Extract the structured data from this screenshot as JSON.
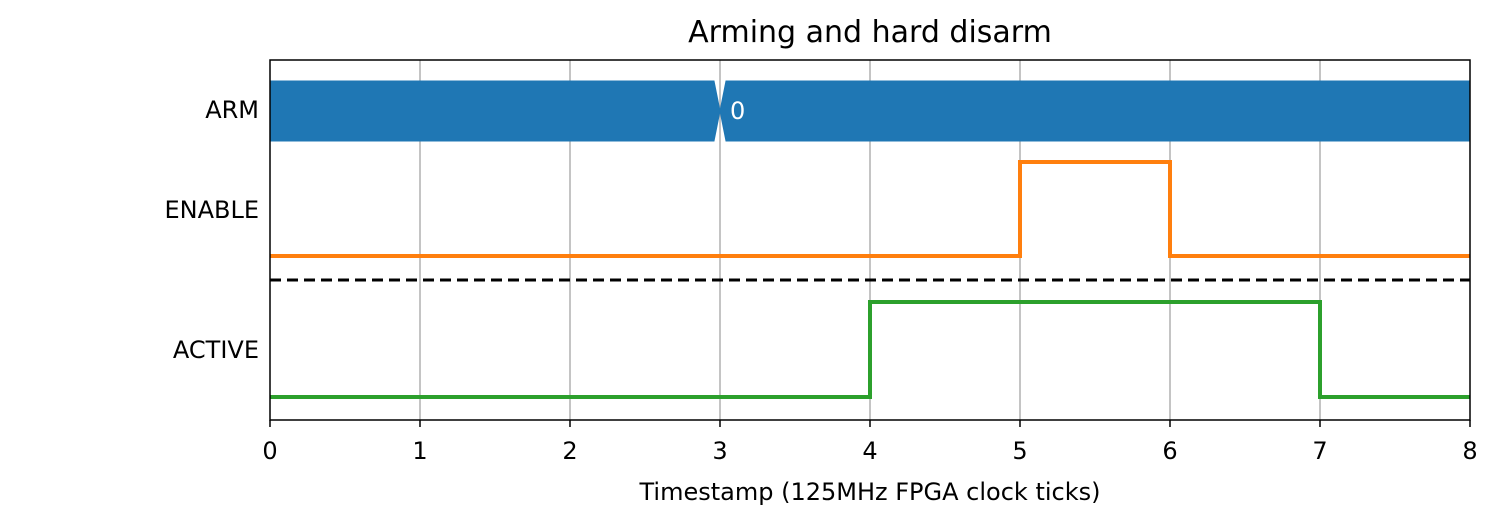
{
  "chart_data": {
    "type": "line",
    "title": "Arming and hard disarm",
    "xlabel": "Timestamp (125MHz FPGA clock ticks)",
    "ylabel": "",
    "xlim": [
      0,
      8
    ],
    "x_ticks": [
      "0",
      "1",
      "2",
      "3",
      "4",
      "5",
      "6",
      "7",
      "8"
    ],
    "grid": "vertical",
    "signals": [
      {
        "name": "ARM",
        "kind": "bus",
        "color": "#1f77b4",
        "segments": [
          {
            "start": 0,
            "end": 3,
            "label": ""
          },
          {
            "start": 3,
            "end": 8,
            "label": "0"
          }
        ]
      },
      {
        "name": "ENABLE",
        "kind": "digital",
        "color": "#ff7f0e",
        "steps": [
          {
            "x": 0,
            "y": 0
          },
          {
            "x": 5,
            "y": 1
          },
          {
            "x": 6,
            "y": 0
          },
          {
            "x": 8,
            "y": 0
          }
        ]
      },
      {
        "name": "ACTIVE",
        "kind": "digital",
        "color": "#2ca02c",
        "steps": [
          {
            "x": 0,
            "y": 0
          },
          {
            "x": 4,
            "y": 1
          },
          {
            "x": 7,
            "y": 0
          },
          {
            "x": 8,
            "y": 0
          }
        ]
      }
    ],
    "separator": {
      "after_signal": "ENABLE",
      "style": "dashed",
      "color": "#000000"
    }
  }
}
